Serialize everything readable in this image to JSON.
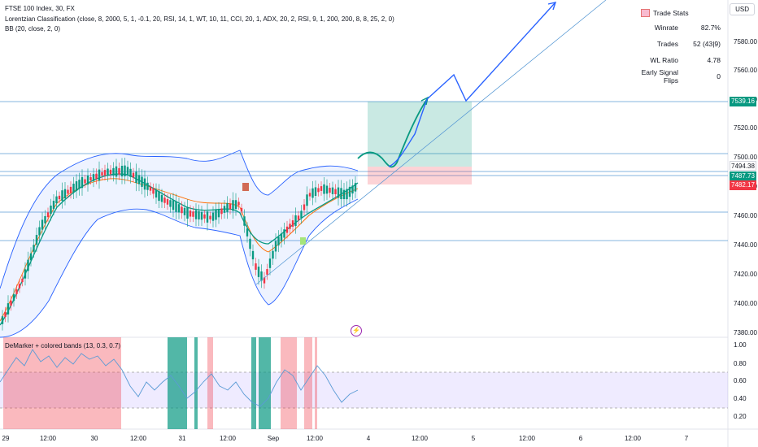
{
  "legend": {
    "symbol_line": "FTSE 100 Index, 30, FX",
    "indicator_line": "Lorentzian Classification (close, 8, 2000, 5, 1, -0.1, 20, RSI, 14, 1, WT, 10, 11, CCI, 20, 1, ADX, 20, 2, RSI, 9, 1, 200, 200, 8, 8, 25, 2, 0)",
    "bb_line": "BB (20, close, 2, 0)"
  },
  "currency": "USD",
  "trade_stats": {
    "title": "Trade Stats",
    "rows": [
      {
        "label": "Winrate",
        "value": "82.7%"
      },
      {
        "label": "Trades",
        "value": "52 (43|9)"
      },
      {
        "label": "WL Ratio",
        "value": "4.78"
      },
      {
        "label": "Early Signal Flips",
        "value": "0"
      }
    ]
  },
  "subpane": {
    "legend": "DeMarker + colored bands (13, 0.3, 0.7)",
    "y_ticks": [
      "1.00",
      "0.80",
      "0.60",
      "0.40",
      "0.20"
    ]
  },
  "price_axis": {
    "ticks": [
      "7580.00",
      "7560.00",
      "7540.00",
      "7520.00",
      "7500.00",
      "7480.00",
      "7460.00",
      "7440.00",
      "7420.00",
      "7400.00",
      "7380.00"
    ],
    "badges": [
      {
        "text": "7539.16",
        "color": "#089981"
      },
      {
        "text": "7494.38",
        "color": "#ffffff"
      },
      {
        "text": "7487.73",
        "color": "#089981"
      },
      {
        "text": "7482.17",
        "color": "#f23645"
      }
    ]
  },
  "time_axis": {
    "labels": [
      "29",
      "12:00",
      "30",
      "12:00",
      "31",
      "12:00",
      "Sep",
      "12:00",
      "4",
      "12:00",
      "5",
      "12:00",
      "6",
      "12:00",
      "7"
    ]
  },
  "colors": {
    "bb": "#2962ff",
    "bb_fill": "#e3f2fd",
    "green": "#089981",
    "red": "#f23645",
    "projection": "#2962ff"
  }
}
